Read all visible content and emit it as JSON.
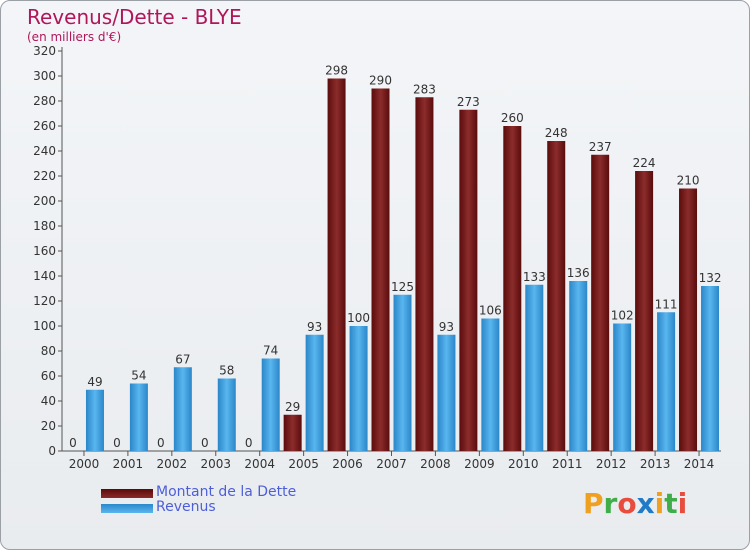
{
  "chart_data": {
    "type": "bar",
    "title": "Revenus/Dette - BLYE",
    "subtitle": "(en milliers d'€)",
    "categories": [
      "2000",
      "2001",
      "2002",
      "2003",
      "2004",
      "2005",
      "2006",
      "2007",
      "2008",
      "2009",
      "2010",
      "2011",
      "2012",
      "2013",
      "2014"
    ],
    "series": [
      {
        "name": "Montant de la Dette",
        "color": "#7a1818",
        "values": [
          0,
          0,
          0,
          0,
          0,
          29,
          298,
          290,
          283,
          273,
          260,
          248,
          237,
          224,
          210
        ]
      },
      {
        "name": "Revenus",
        "color": "#3b9ee0",
        "values": [
          49,
          54,
          67,
          58,
          74,
          93,
          100,
          125,
          93,
          106,
          133,
          136,
          102,
          111,
          132
        ]
      }
    ],
    "ylim": [
      0,
      320
    ],
    "ytick_step": 20,
    "grid": false,
    "legend_position": "bottom-left"
  },
  "logo": {
    "letters": [
      "P",
      "r",
      "o",
      "x",
      "i",
      "t",
      "i"
    ],
    "colors": [
      "#f0a020",
      "#3fae49",
      "#e84c3d",
      "#1f7ac8",
      "#f0a020",
      "#3fae49",
      "#e84c3d"
    ]
  }
}
